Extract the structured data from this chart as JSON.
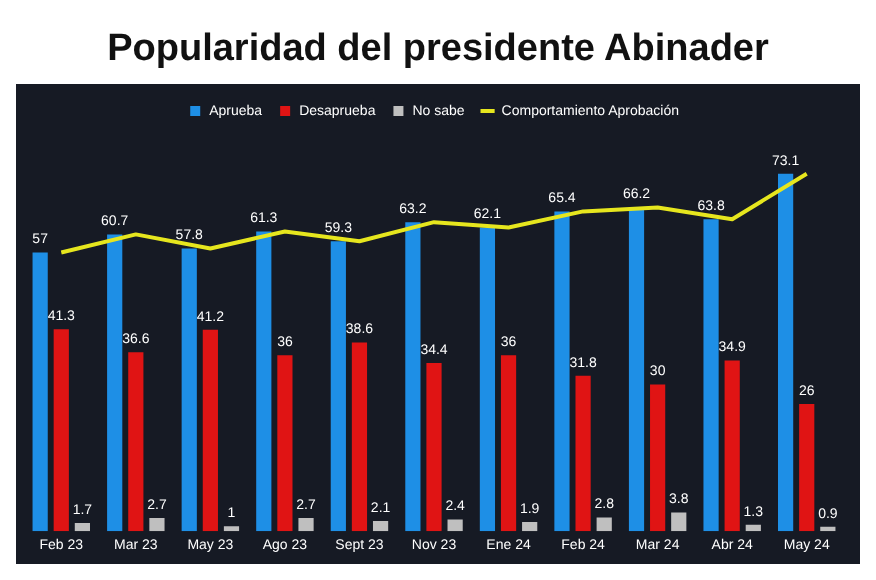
{
  "chart_data": {
    "type": "bar",
    "title": "Popularidad del presidente Abinader",
    "categories": [
      "Feb 23",
      "Mar 23",
      "May 23",
      "Ago 23",
      "Sept 23",
      "Nov 23",
      "Ene 24",
      "Feb 24",
      "Mar 24",
      "Abr 24",
      "May 24"
    ],
    "series": [
      {
        "name": "Aprueba",
        "color": "#1e8fe6",
        "values": [
          57,
          60.7,
          57.8,
          61.3,
          59.3,
          63.2,
          62.1,
          65.4,
          66.2,
          63.8,
          73.1
        ]
      },
      {
        "name": "Desaprueba",
        "color": "#e01414",
        "values": [
          41.3,
          36.6,
          41.2,
          36,
          38.6,
          34.4,
          36,
          31.8,
          30,
          34.9,
          26
        ]
      },
      {
        "name": "No sabe",
        "color": "#bfbfbf",
        "values": [
          1.7,
          2.7,
          1,
          2.7,
          2.1,
          2.4,
          1.9,
          2.8,
          3.8,
          1.3,
          0.9
        ]
      },
      {
        "name": "Comportamiento Aprobación",
        "type": "line",
        "color": "#e6e61e",
        "values": [
          57,
          60.7,
          57.8,
          61.3,
          59.3,
          63.2,
          62.1,
          65.4,
          66.2,
          63.8,
          73.1
        ],
        "value_labels": [
          null,
          null,
          null,
          null,
          null,
          null,
          null,
          null,
          null,
          null,
          null
        ]
      }
    ],
    "data_labels": true,
    "legend": "top",
    "tick_labels": "x",
    "marker": "none"
  }
}
